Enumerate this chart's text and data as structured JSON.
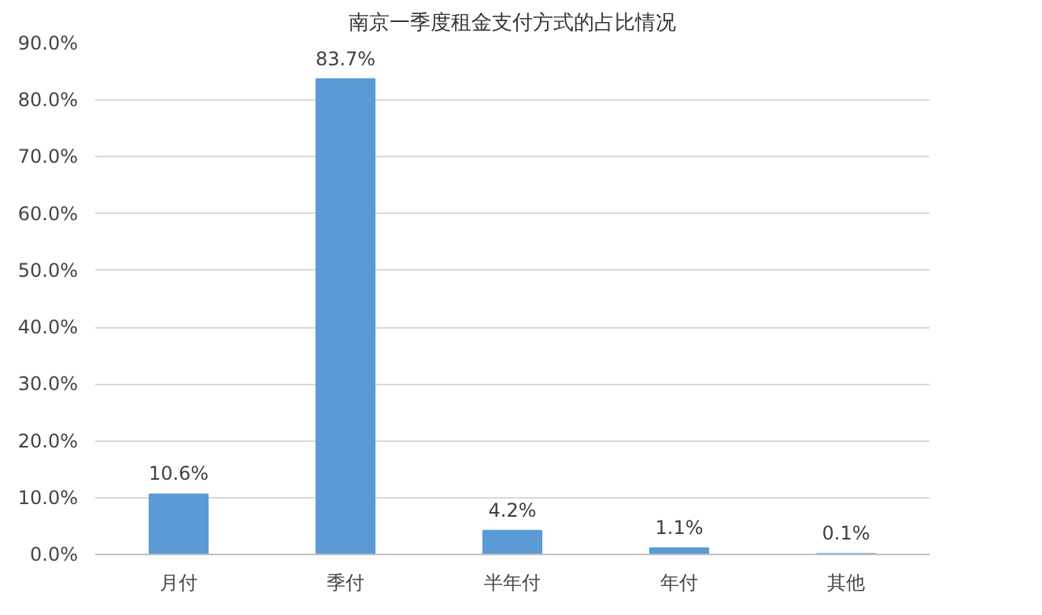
{
  "chart_data": {
    "type": "bar",
    "title": "南京一季度租金支付方式的占比情况",
    "categories": [
      "月付",
      "季付",
      "半年付",
      "年付",
      "其他"
    ],
    "values": [
      10.6,
      83.7,
      4.2,
      1.1,
      0.1
    ],
    "color": "#5b9bd5",
    "ylim": [
      0,
      90
    ],
    "yticks": [
      {
        "value": 0,
        "label": "0.0%"
      },
      {
        "value": 10,
        "label": "10.0%"
      },
      {
        "value": 20,
        "label": "20.0%"
      },
      {
        "value": 30,
        "label": "30.0%"
      },
      {
        "value": 40,
        "label": "40.0%"
      },
      {
        "value": 50,
        "label": "50.0%"
      },
      {
        "value": 60,
        "label": "60.0%"
      },
      {
        "value": 70,
        "label": "70.0%"
      },
      {
        "value": 80,
        "label": "80.0%"
      },
      {
        "value": 90,
        "label": "90.0%"
      }
    ],
    "value_labels": [
      "10.6%",
      "83.7%",
      "4.2%",
      "1.1%",
      "0.1%"
    ],
    "grid": "y"
  }
}
